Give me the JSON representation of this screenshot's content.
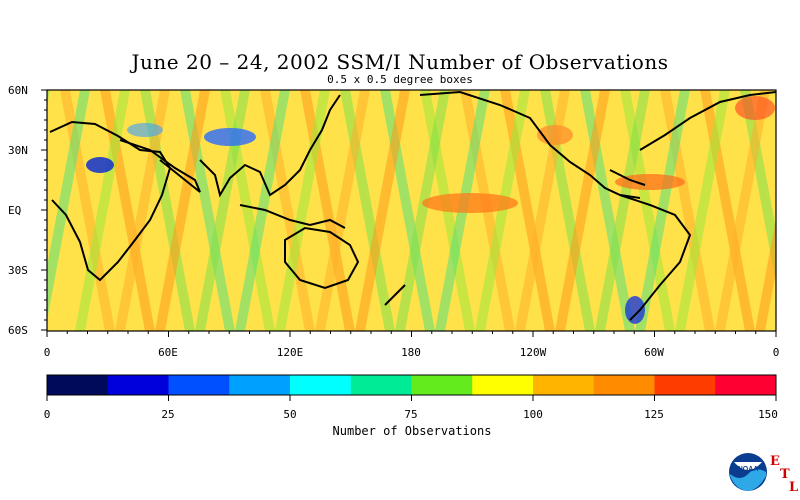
{
  "title": "June 20 – 24, 2002 SSM/I Number of Observations",
  "subtitle": "0.5 x 0.5 degree boxes",
  "lat_labels": [
    "60N",
    "30N",
    "EQ",
    "30S",
    "60S"
  ],
  "lon_labels": [
    "0",
    "60E",
    "120E",
    "180",
    "120W",
    "60W",
    "0"
  ],
  "colorbar": {
    "colors": [
      "#000a5a",
      "#0000dc",
      "#0050ff",
      "#00a0ff",
      "#00ffff",
      "#00eb96",
      "#64eb1e",
      "#ffff00",
      "#ffb400",
      "#ff8c00",
      "#ff3c00",
      "#ff0032"
    ],
    "tick_labels": [
      "0",
      "25",
      "50",
      "75",
      "100",
      "125",
      "150"
    ],
    "title": "Number of Observations",
    "range": [
      0,
      150
    ]
  },
  "logo": {
    "icon": "noaa-logo",
    "text": "NOAA",
    "letters": [
      "E",
      "T",
      "L"
    ]
  }
}
